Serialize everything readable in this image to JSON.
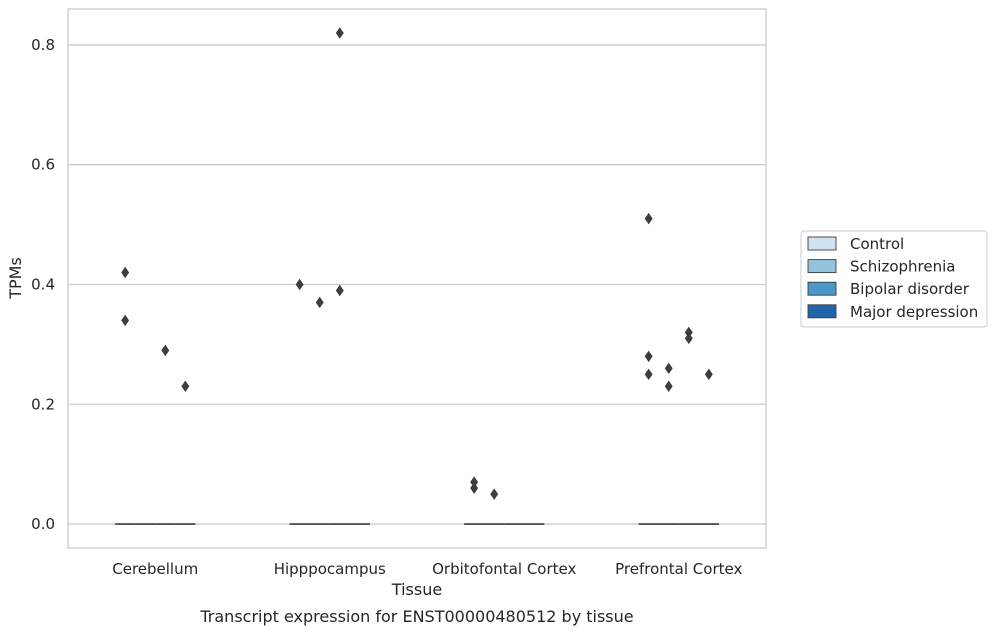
{
  "chart_data": {
    "type": "box",
    "xlabel": "Tissue",
    "ylabel": "TPMs",
    "caption": "Transcript expression for ENST00000480512 by tissue",
    "categories": [
      "Cerebellum",
      "Hipppocampus",
      "Orbitofontal Cortex",
      "Prefrontal Cortex"
    ],
    "ylim": [
      -0.04,
      0.86
    ],
    "yticks": [
      0.0,
      0.2,
      0.4,
      0.6,
      0.8
    ],
    "ytick_labels": [
      "0.0",
      "0.2",
      "0.4",
      "0.6",
      "0.8"
    ],
    "grid": "horizontal",
    "legend_position": "right",
    "series": [
      {
        "name": "Control",
        "color": "#cfe1f2",
        "median": 0.0,
        "outliers": [
          0.42,
          0.34
        ]
      },
      {
        "name": "Schizophrenia",
        "color": "#93c4de",
        "median": 0.0,
        "outliers": []
      },
      {
        "name": "Bipolar disorder",
        "color": "#4a98c9",
        "median": 0.0,
        "outliers": []
      },
      {
        "name": "Major depression",
        "color": "#2164ab",
        "median": 0.0,
        "outliers": []
      }
    ],
    "outliers_by_category": [
      [
        {
          "series": "Control",
          "values": [
            0.42,
            0.34
          ]
        },
        {
          "series": "Bipolar disorder",
          "values": [
            0.29
          ]
        },
        {
          "series": "Major depression",
          "values": [
            0.23
          ]
        }
      ],
      [
        {
          "series": "Control",
          "values": [
            0.4
          ]
        },
        {
          "series": "Schizophrenia",
          "values": [
            0.37
          ]
        },
        {
          "series": "Bipolar disorder",
          "values": [
            0.82,
            0.39
          ]
        }
      ],
      [
        {
          "series": "Control",
          "values": [
            0.07,
            0.06
          ]
        },
        {
          "series": "Schizophrenia",
          "values": [
            0.05
          ]
        }
      ],
      [
        {
          "series": "Control",
          "values": [
            0.51,
            0.28,
            0.25
          ]
        },
        {
          "series": "Schizophrenia",
          "values": [
            0.26,
            0.23
          ]
        },
        {
          "series": "Bipolar disorder",
          "values": [
            0.32,
            0.31
          ]
        },
        {
          "series": "Major depression",
          "values": [
            0.25
          ]
        }
      ]
    ]
  }
}
